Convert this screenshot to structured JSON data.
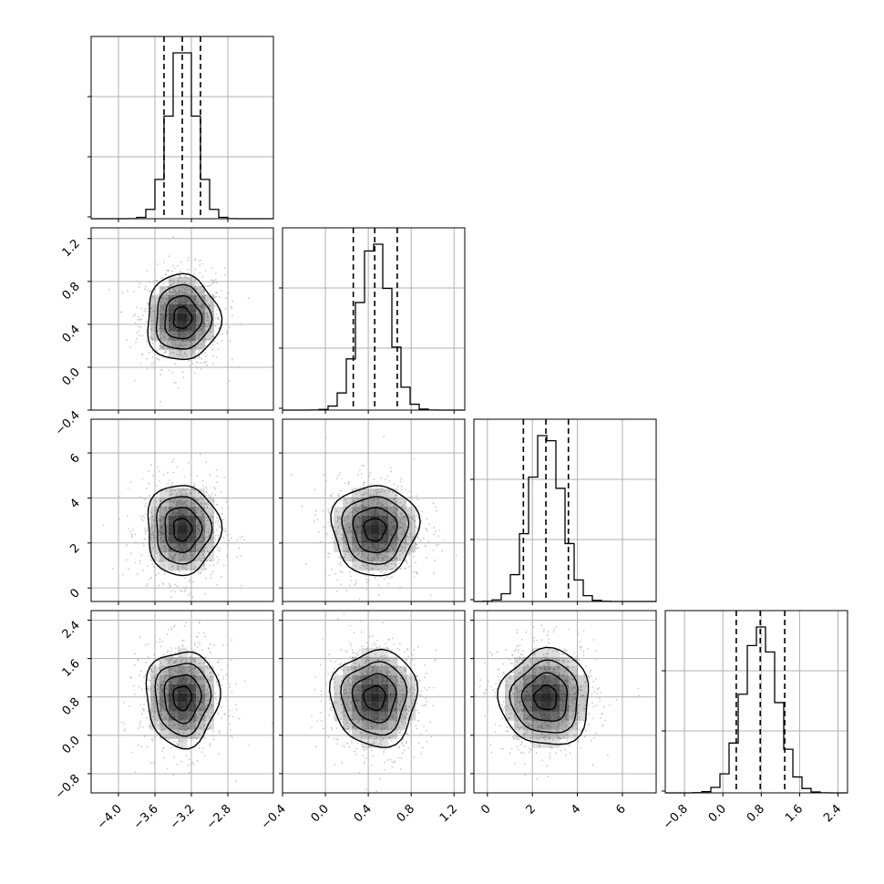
{
  "chart_data": {
    "type": "corner",
    "parameters": [
      {
        "index": 0,
        "mean": -3.3,
        "sigma": 0.2,
        "range": [
          -4.3,
          -2.3
        ],
        "ticks": [
          "−4.0",
          "−3.6",
          "−3.2",
          "−2.8"
        ],
        "tick_values": [
          -4.0,
          -3.6,
          -3.2,
          -2.8
        ],
        "quantiles": [
          -3.5,
          -3.3,
          -3.1
        ]
      },
      {
        "index": 1,
        "mean": 0.46,
        "sigma": 0.2,
        "range": [
          -0.4,
          1.3
        ],
        "ticks": [
          "−0.4",
          "0.0",
          "0.4",
          "0.8",
          "1.2"
        ],
        "tick_values": [
          -0.4,
          0.0,
          0.4,
          0.8,
          1.2
        ],
        "quantiles": [
          0.26,
          0.46,
          0.67
        ]
      },
      {
        "index": 2,
        "mean": 2.6,
        "sigma": 1.0,
        "range": [
          -0.6,
          7.5
        ],
        "ticks": [
          "0",
          "2",
          "4",
          "6"
        ],
        "tick_values": [
          0,
          2,
          4,
          6
        ],
        "quantiles": [
          1.6,
          2.6,
          3.6
        ]
      },
      {
        "index": 3,
        "mean": 0.78,
        "sigma": 0.5,
        "range": [
          -1.2,
          2.6
        ],
        "ticks": [
          "−0.8",
          "0.0",
          "0.8",
          "1.6",
          "2.4"
        ],
        "tick_values": [
          -0.8,
          0.0,
          0.8,
          1.6,
          2.4
        ],
        "quantiles": [
          0.28,
          0.78,
          1.29
        ]
      }
    ],
    "histogram_bins": 20,
    "contour_levels": [
      0.5,
      1.0,
      1.5,
      2.0
    ],
    "grid": true,
    "samples_per_panel": 900,
    "colors": {
      "frame": "#000000",
      "grid": "#b0b0b0",
      "points": "#b4b4b4",
      "hist": "#000000",
      "density": "#000000"
    }
  }
}
